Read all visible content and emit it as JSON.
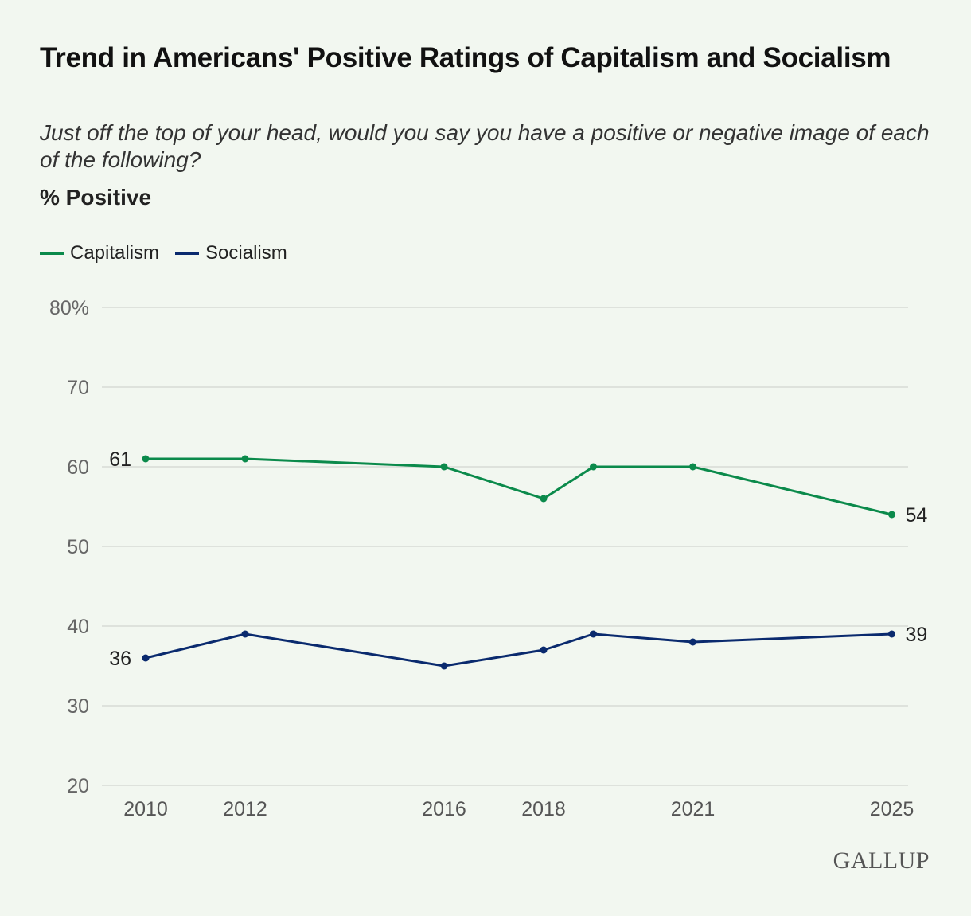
{
  "chart_data": {
    "type": "line",
    "title": "Trend in Americans' Positive Ratings of Capitalism and Socialism",
    "subtitle": "Just off the top of your head, would you say you have a positive or negative image of each of the following?",
    "ylabel": "% Positive",
    "x": [
      2010,
      2012,
      2016,
      2018,
      2019,
      2021,
      2025
    ],
    "x_tick_labels": [
      "2010",
      "2012",
      "2016",
      "2018",
      "2021",
      "2025"
    ],
    "x_ticks": [
      2010,
      2012,
      2016,
      2018,
      2021,
      2025
    ],
    "ylim": [
      20,
      80
    ],
    "y_ticks": [
      20,
      30,
      40,
      50,
      60,
      70,
      80
    ],
    "y_tick_labels": [
      "20",
      "30",
      "40",
      "50",
      "60",
      "70",
      "80%"
    ],
    "grid": true,
    "legend_position": "top-left",
    "series": [
      {
        "name": "Capitalism",
        "color": "#0b8a4b",
        "values": [
          61,
          61,
          60,
          56,
          60,
          60,
          54
        ],
        "start_label": "61",
        "end_label": "54"
      },
      {
        "name": "Socialism",
        "color": "#0a2a6e",
        "values": [
          36,
          39,
          35,
          37,
          39,
          38,
          39
        ],
        "start_label": "36",
        "end_label": "39"
      }
    ]
  },
  "source_logo": "GALLUP"
}
